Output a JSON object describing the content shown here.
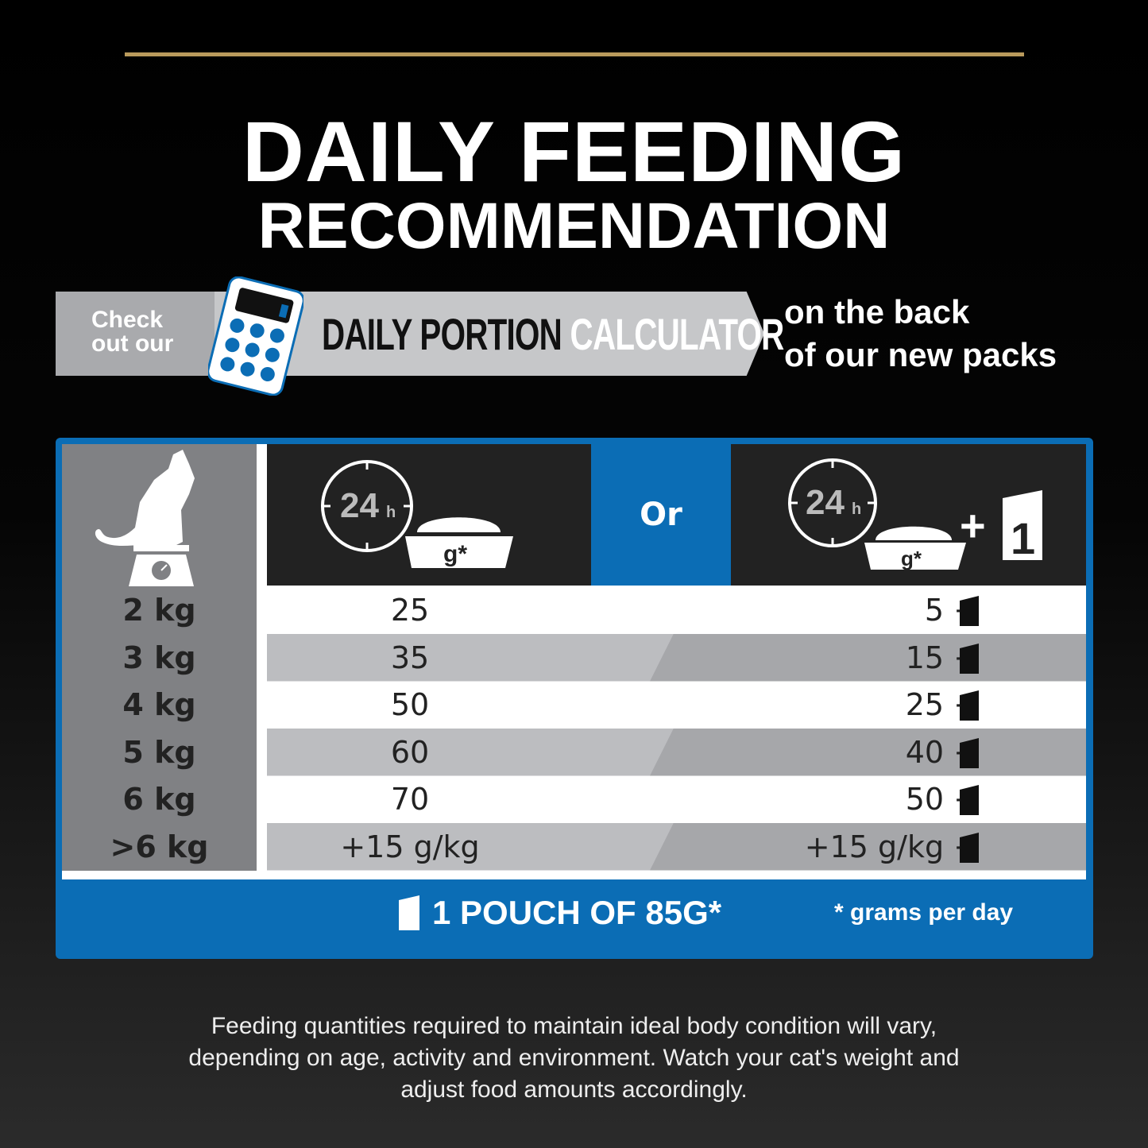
{
  "title": {
    "line1": "DAILY FEEDING",
    "line2": "RECOMMENDATION"
  },
  "banner": {
    "check_line1": "Check",
    "check_line2": "out our",
    "calc_part1": "DAILY PORTION",
    "calc_part2": "CALCULATOR",
    "back_line1": "on the back",
    "back_line2": "of our new packs"
  },
  "table": {
    "header": {
      "col1_clock": "24",
      "col1_clock_unit": "h",
      "col1_bowl": "g*",
      "or": "Or",
      "col2_clock": "24",
      "col2_clock_unit": "h",
      "col2_bowl": "g*",
      "col2_plus": "+",
      "col2_pouch": "1"
    },
    "rows": [
      {
        "weight": "2 kg",
        "dry_only": "25",
        "mixed": "5 +"
      },
      {
        "weight": "3 kg",
        "dry_only": "35",
        "mixed": "15 +"
      },
      {
        "weight": "4 kg",
        "dry_only": "50",
        "mixed": "25 +"
      },
      {
        "weight": "5 kg",
        "dry_only": "60",
        "mixed": "40 +"
      },
      {
        "weight": "6 kg",
        "dry_only": "70",
        "mixed": "50 +"
      },
      {
        "weight": ">6 kg",
        "dry_only": "+15 g/kg",
        "mixed": "+15 g/kg +"
      }
    ],
    "footer": {
      "pouch": "1 POUCH OF 85G*",
      "note": "* grams per day"
    }
  },
  "disclaimer": [
    "Feeding quantities required to maintain ideal body condition will vary,",
    "depending on age, activity and environment. Watch your cat's weight and",
    "adjust food amounts accordingly."
  ],
  "colors": {
    "blue": "#0b6db5",
    "gold": "#b99a5c"
  }
}
